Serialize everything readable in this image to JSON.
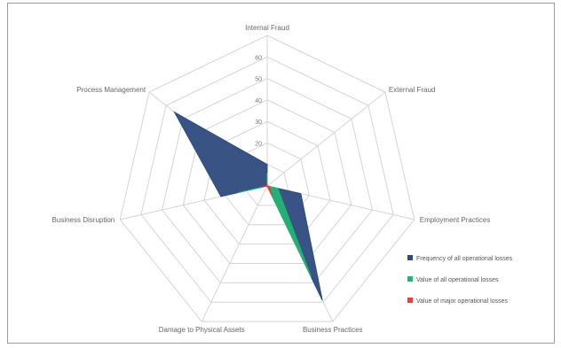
{
  "chart_data": {
    "type": "radar",
    "title": "",
    "axes": [
      "Internal Fraud",
      "External Fraud",
      "Employment Practices",
      "Business Practices",
      "Damage to Physical Assets",
      "Business Disruption",
      "Process Management"
    ],
    "ticks": [
      "10",
      "20",
      "30",
      "40",
      "50",
      "60"
    ],
    "rmax": 70,
    "grid": true,
    "legend_position": "right",
    "series": [
      {
        "name": "Frequency of all operational losses",
        "color": "#2e4a7d",
        "values": [
          10,
          0,
          16,
          59,
          0,
          22,
          55
        ]
      },
      {
        "name": "Value of all operational losses",
        "color": "#22b573",
        "values": [
          6,
          0,
          5,
          47,
          0,
          14,
          0
        ]
      },
      {
        "name": "Value of major operational losses",
        "color": "#e8413a",
        "values": [
          1,
          0,
          1,
          5,
          0,
          3,
          0
        ]
      }
    ]
  }
}
